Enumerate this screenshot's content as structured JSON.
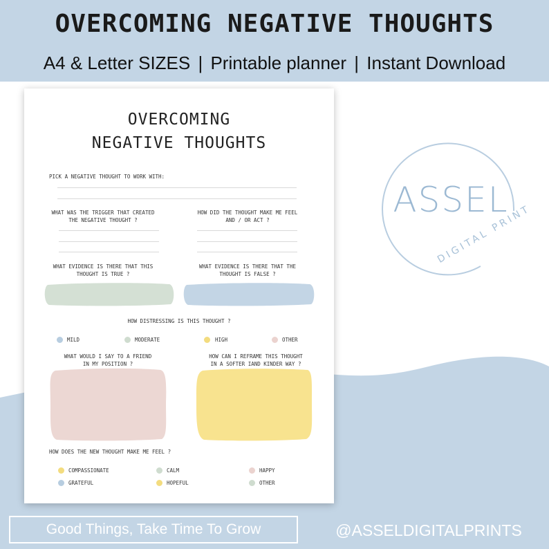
{
  "banner": {
    "headline": "OVERCOMING NEGATIVE THOUGHTS",
    "sub_parts": [
      "A4 & Letter SIZES",
      "Printable planner",
      "Instant Download"
    ],
    "separator": "|"
  },
  "worksheet": {
    "title_line1": "OVERCOMING",
    "title_line2": "NEGATIVE THOUGHTS",
    "q_pick": "PICK A NEGATIVE THOUGHT TO WORK WITH:",
    "q_trigger_1": "WHAT WAS THE TRIGGER THAT CREATED",
    "q_trigger_2": "THE NEGATIVE THOUGHT ?",
    "q_feel_1": "HOW DID THE THOUGHT MAKE ME FEEL",
    "q_feel_2": "AND / OR ACT ?",
    "q_true_1": "WHAT EVIDENCE IS THERE THAT THIS",
    "q_true_2": "THOUGHT IS TRUE ?",
    "q_false_1": "WHAT EVIDENCE IS THERE THAT THE",
    "q_false_2": "THOUGHT IS FALSE ?",
    "q_distress": "HOW DISTRESSING IS THIS THOUGHT  ?",
    "distress_options": [
      "MILD",
      "MODERATE",
      "HIGH",
      "OTHER"
    ],
    "q_friend_1": "WHAT WOULD I SAY TO A FRIEND",
    "q_friend_2": "IN MY POSITION ?",
    "q_reframe_1": "HOW CAN I REFRAME THIS THOUGHT",
    "q_reframe_2": "IN A SOFTER IAND KINDER WAY ?",
    "q_newfeel": "HOW DOES THE NEW THOUGHT MAKE ME FEEL ?",
    "feel_options": [
      "COMPASSIONATE",
      "CALM",
      "HAPPY",
      "GRATEFUL",
      "HOPEFUL",
      "OTHER"
    ]
  },
  "colors": {
    "blue": "#c3d5e5",
    "green": "#d4e0d4",
    "yellow": "#f8e38f",
    "pink": "#ecd7d3",
    "dot_blue": "#b7cde0",
    "dot_green": "#cfdccf",
    "dot_yellow": "#f3dc7f",
    "dot_pink": "#ebd3cf"
  },
  "logo": {
    "main": "ASSEL",
    "sub": "DIGITAL PRINT"
  },
  "footer": {
    "tagline": "Good Things, Take Time To Grow",
    "handle": "@ASSELDIGITALPRINTS"
  }
}
